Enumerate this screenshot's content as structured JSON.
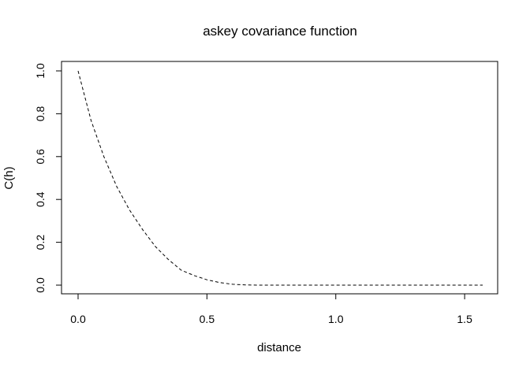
{
  "chart_data": {
    "type": "line",
    "title": "askey covariance function",
    "xlabel": "distance",
    "ylabel": "C(h)",
    "xlim": [
      0,
      1.57
    ],
    "ylim": [
      0,
      1
    ],
    "x_ticks": [
      0,
      0.5,
      1,
      1.5
    ],
    "x_tick_labels": [
      "0.0",
      "0.5",
      "1.0",
      "1.5"
    ],
    "y_ticks": [
      0,
      0.2,
      0.4,
      0.6,
      0.8,
      1
    ],
    "y_tick_labels": [
      "0.0",
      "0.2",
      "0.4",
      "0.6",
      "0.8",
      "1.0"
    ],
    "grid": false,
    "legend": "none",
    "series": [
      {
        "line_style": "dashed",
        "color": "#000000",
        "x": [
          0,
          0.05,
          0.1,
          0.15,
          0.2,
          0.25,
          0.3,
          0.35,
          0.4,
          0.45,
          0.5,
          0.55,
          0.6,
          0.65,
          0.7,
          0.8,
          0.9,
          1.0,
          1.1,
          1.2,
          1.3,
          1.4,
          1.5,
          1.57
        ],
        "y": [
          1.0,
          0.77,
          0.6,
          0.46,
          0.35,
          0.26,
          0.18,
          0.12,
          0.07,
          0.045,
          0.025,
          0.012,
          0.004,
          0.001,
          0,
          0,
          0,
          0,
          0,
          0,
          0,
          0,
          0,
          0
        ]
      }
    ]
  }
}
